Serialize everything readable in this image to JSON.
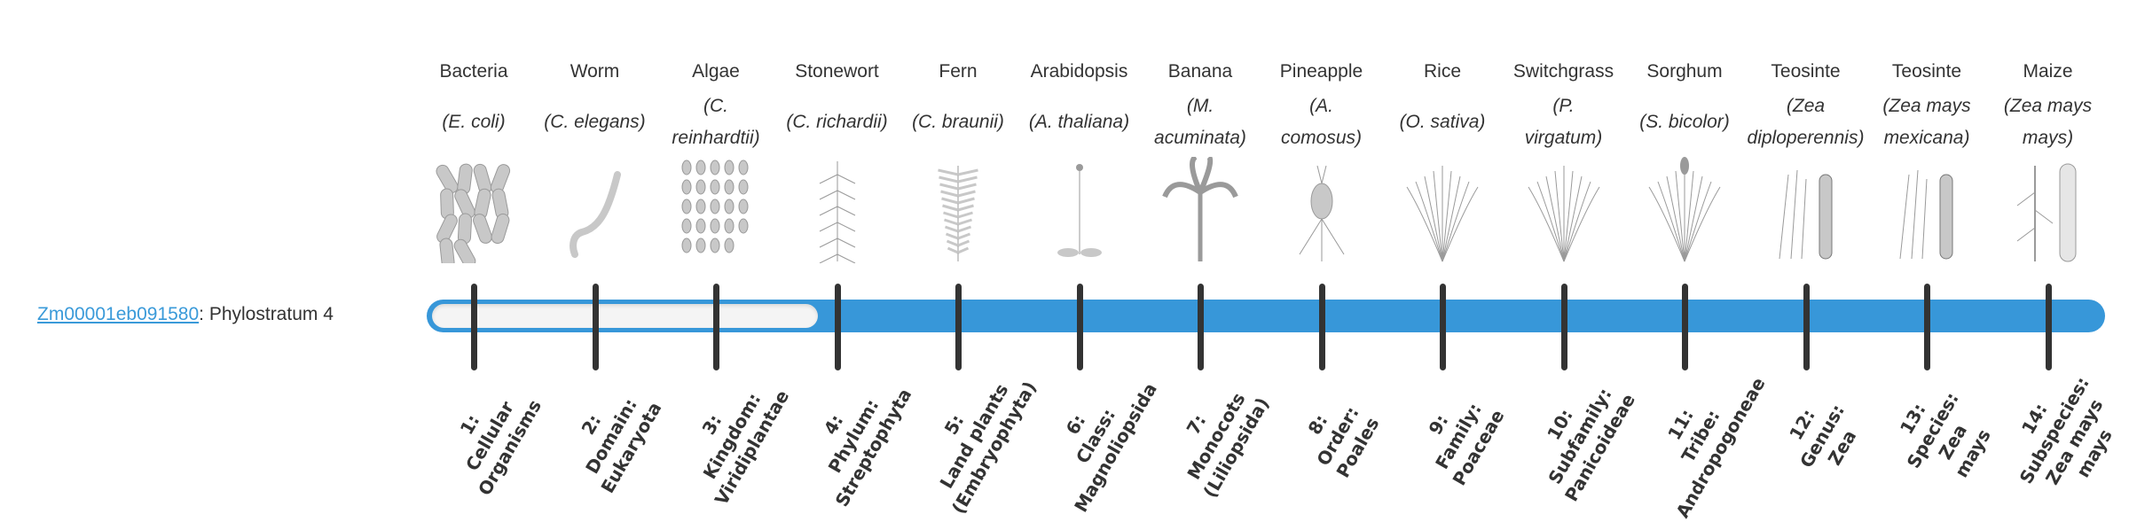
{
  "gene": {
    "id": "Zm00001eb091580",
    "suffix": ": Phylostratum 4"
  },
  "phylostratum": 4,
  "colors": {
    "bar": "#3797d9",
    "link": "#3a9ad9",
    "tick": "#333333",
    "empty_fill": "#f4f4f4"
  },
  "organisms": [
    {
      "common": "Bacteria",
      "sci_lines": [
        "(E. coli)"
      ],
      "picture": "bacteria-illustration"
    },
    {
      "common": "Worm",
      "sci_lines": [
        "(C. elegans)"
      ],
      "picture": "worm-illustration"
    },
    {
      "common": "Algae",
      "sci_lines": [
        "(C.",
        "reinhardtii)"
      ],
      "picture": "algae-illustration"
    },
    {
      "common": "Stonewort",
      "sci_lines": [
        "(C. richardii)"
      ],
      "picture": "stonewort-illustration"
    },
    {
      "common": "Fern",
      "sci_lines": [
        "(C. braunii)"
      ],
      "picture": "fern-illustration"
    },
    {
      "common": "Arabidopsis",
      "sci_lines": [
        "(A. thaliana)"
      ],
      "picture": "arabidopsis-illustration"
    },
    {
      "common": "Banana",
      "sci_lines": [
        "(M.",
        "acuminata)"
      ],
      "picture": "banana-illustration"
    },
    {
      "common": "Pineapple",
      "sci_lines": [
        "(A.",
        "comosus)"
      ],
      "picture": "pineapple-illustration"
    },
    {
      "common": "Rice",
      "sci_lines": [
        "(O. sativa)"
      ],
      "picture": "rice-illustration"
    },
    {
      "common": "Switchgrass",
      "sci_lines": [
        "(P.",
        "virgatum)"
      ],
      "picture": "switchgrass-illustration"
    },
    {
      "common": "Sorghum",
      "sci_lines": [
        "(S. bicolor)"
      ],
      "picture": "sorghum-illustration"
    },
    {
      "common": "Teosinte",
      "sci_lines": [
        "(Zea",
        "diploperennis)"
      ],
      "picture": "teosinte-illustration"
    },
    {
      "common": "Teosinte",
      "sci_lines": [
        "(Zea mays",
        "mexicana)"
      ],
      "picture": "teosinte-illustration"
    },
    {
      "common": "Maize",
      "sci_lines": [
        "(Zea mays",
        "mays)"
      ],
      "picture": "maize-illustration"
    }
  ],
  "strata": [
    {
      "lines": [
        "1:",
        "Cellular",
        "Organisms"
      ]
    },
    {
      "lines": [
        "2:",
        "Domain:",
        "Eukaryota"
      ]
    },
    {
      "lines": [
        "3:",
        "Kingdom:",
        "Viridiplantae"
      ]
    },
    {
      "lines": [
        "4:",
        "Phylum:",
        "Streptophyta"
      ]
    },
    {
      "lines": [
        "5:",
        "Land plants",
        "(Embryophyta)"
      ]
    },
    {
      "lines": [
        "6:",
        "Class:",
        "Magnoliopsida"
      ]
    },
    {
      "lines": [
        "7:",
        "Monocots",
        "(Liliopsida)"
      ]
    },
    {
      "lines": [
        "8:",
        "Order:",
        "Poales"
      ]
    },
    {
      "lines": [
        "9:",
        "Family:",
        "Poaceae"
      ]
    },
    {
      "lines": [
        "10:",
        "Subfamily:",
        "Panicoideae"
      ]
    },
    {
      "lines": [
        "11:",
        "Tribe:",
        "Andropogoneae"
      ]
    },
    {
      "lines": [
        "12:",
        "Genus:",
        "Zea"
      ]
    },
    {
      "lines": [
        "13:",
        "Species:",
        "Zea",
        "mays"
      ]
    },
    {
      "lines": [
        "14:",
        "Subspecies:",
        "Zea mays",
        "mays"
      ]
    }
  ]
}
